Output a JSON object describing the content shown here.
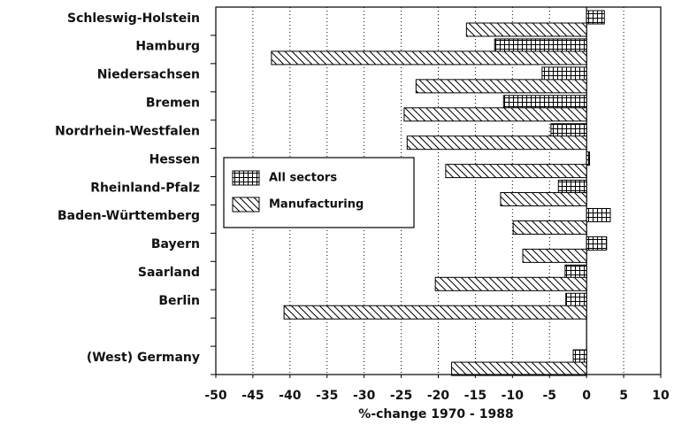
{
  "chart_data": {
    "type": "hbar",
    "x_label": "%-change 1970 - 1988",
    "categories": [
      "Schleswig-Holstein",
      "Hamburg",
      "Niedersachsen",
      "Bremen",
      "Nordrhein-Westfalen",
      "Hessen",
      "Rheinland-Pfalz",
      "Baden-Württemberg",
      "Bayern",
      "Saarland",
      "Berlin",
      null,
      "(West) Germany"
    ],
    "series": [
      {
        "name": "All sectors",
        "color": "#000000",
        "pattern": "crosshatch",
        "values": [
          2.4,
          -12.4,
          -6,
          -11.2,
          -4.8,
          0.4,
          -3.8,
          3.2,
          2.7,
          -2.9,
          -2.8,
          null,
          -1.8
        ]
      },
      {
        "name": "Manufacturing",
        "color": "#000000",
        "pattern": "diagonal",
        "values": [
          -16.2,
          -42.5,
          -23,
          -24.6,
          -24.2,
          -19,
          -11.6,
          -9.9,
          -8.6,
          -20.4,
          -40.8,
          null,
          -18.2
        ]
      }
    ],
    "xlim": [
      -50,
      10
    ],
    "xticks": [
      -50,
      -45,
      -40,
      -35,
      -30,
      -25,
      -20,
      -15,
      -10,
      -5,
      0,
      5,
      10
    ],
    "grid": true,
    "legend": "middle-left"
  }
}
